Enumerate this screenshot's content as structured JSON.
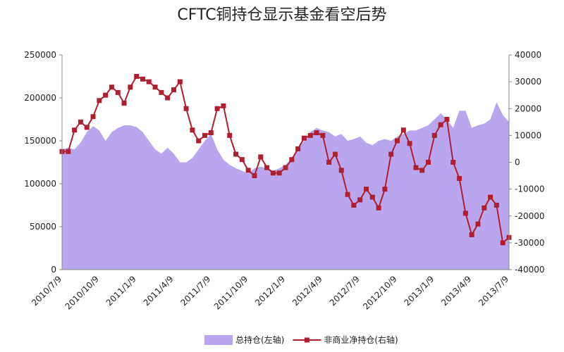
{
  "chart_data": {
    "type": "area-line",
    "title": "CFTC铜持仓显示基金看空后势",
    "categories": [
      "2010/7/9",
      null,
      null,
      null,
      null,
      null,
      "2010/10/9",
      null,
      null,
      null,
      null,
      null,
      "2011/1/9",
      null,
      null,
      null,
      null,
      null,
      "2011/4/9",
      null,
      null,
      null,
      null,
      null,
      "2011/7/9",
      null,
      null,
      null,
      null,
      null,
      "2011/10/9",
      null,
      null,
      null,
      null,
      null,
      "2012/1/9",
      null,
      null,
      null,
      null,
      null,
      "2012/4/9",
      null,
      null,
      null,
      null,
      null,
      "2012/7/9",
      null,
      null,
      null,
      null,
      null,
      "2012/10/9",
      null,
      null,
      null,
      null,
      null,
      "2013/1/9",
      null,
      null,
      null,
      null,
      null,
      "2013/4/9",
      null,
      null,
      null,
      null,
      null,
      "2013/7/9"
    ],
    "series": [
      {
        "name": "总持仓(左轴)",
        "color": "#b9a6ef",
        "axis": "y",
        "values": [
          140000,
          142000,
          140000,
          148000,
          160000,
          167000,
          162000,
          150000,
          160000,
          165000,
          168000,
          168000,
          166000,
          160000,
          150000,
          140000,
          135000,
          142000,
          135000,
          125000,
          125000,
          130000,
          140000,
          150000,
          158000,
          140000,
          128000,
          122000,
          118000,
          115000,
          112000,
          118000,
          120000,
          118000,
          115000,
          118000,
          122000,
          130000,
          140000,
          150000,
          160000,
          165000,
          162000,
          160000,
          155000,
          158000,
          150000,
          152000,
          155000,
          148000,
          145000,
          150000,
          152000,
          150000,
          155000,
          158000,
          162000,
          162000,
          165000,
          168000,
          175000,
          182000,
          175000,
          165000,
          185000,
          185000,
          165000,
          168000,
          170000,
          175000,
          195000,
          180000,
          172000
        ]
      },
      {
        "name": "非商业净持仓(右轴)",
        "color": "#b01f2e",
        "axis": "y2",
        "values": [
          4000,
          4000,
          12000,
          15000,
          13000,
          17000,
          23000,
          25000,
          28000,
          26000,
          22000,
          28000,
          32000,
          31000,
          30000,
          28000,
          26000,
          24000,
          27000,
          30000,
          20000,
          12000,
          8000,
          10000,
          11000,
          20000,
          21000,
          10000,
          3000,
          1000,
          -3000,
          -5000,
          2000,
          -2000,
          -4000,
          -4000,
          -2000,
          1000,
          5000,
          9000,
          10000,
          11000,
          10000,
          0,
          3000,
          -3000,
          -12000,
          -16000,
          -14000,
          -10000,
          -13000,
          -17000,
          -10000,
          3000,
          8000,
          12000,
          7000,
          -2000,
          -3000,
          0,
          10000,
          14000,
          16000,
          0,
          -6000,
          -19000,
          -27000,
          -23000,
          -17000,
          -13000,
          -16000,
          -30000,
          -28000
        ]
      }
    ],
    "ylim": [
      0,
      250000
    ],
    "yticks": [
      0,
      50000,
      100000,
      150000,
      200000,
      250000
    ],
    "y2lim": [
      -40000,
      40000
    ],
    "y2ticks": [
      -40000,
      -30000,
      -20000,
      -10000,
      0,
      10000,
      20000,
      30000,
      40000
    ],
    "legend": "bottom"
  }
}
